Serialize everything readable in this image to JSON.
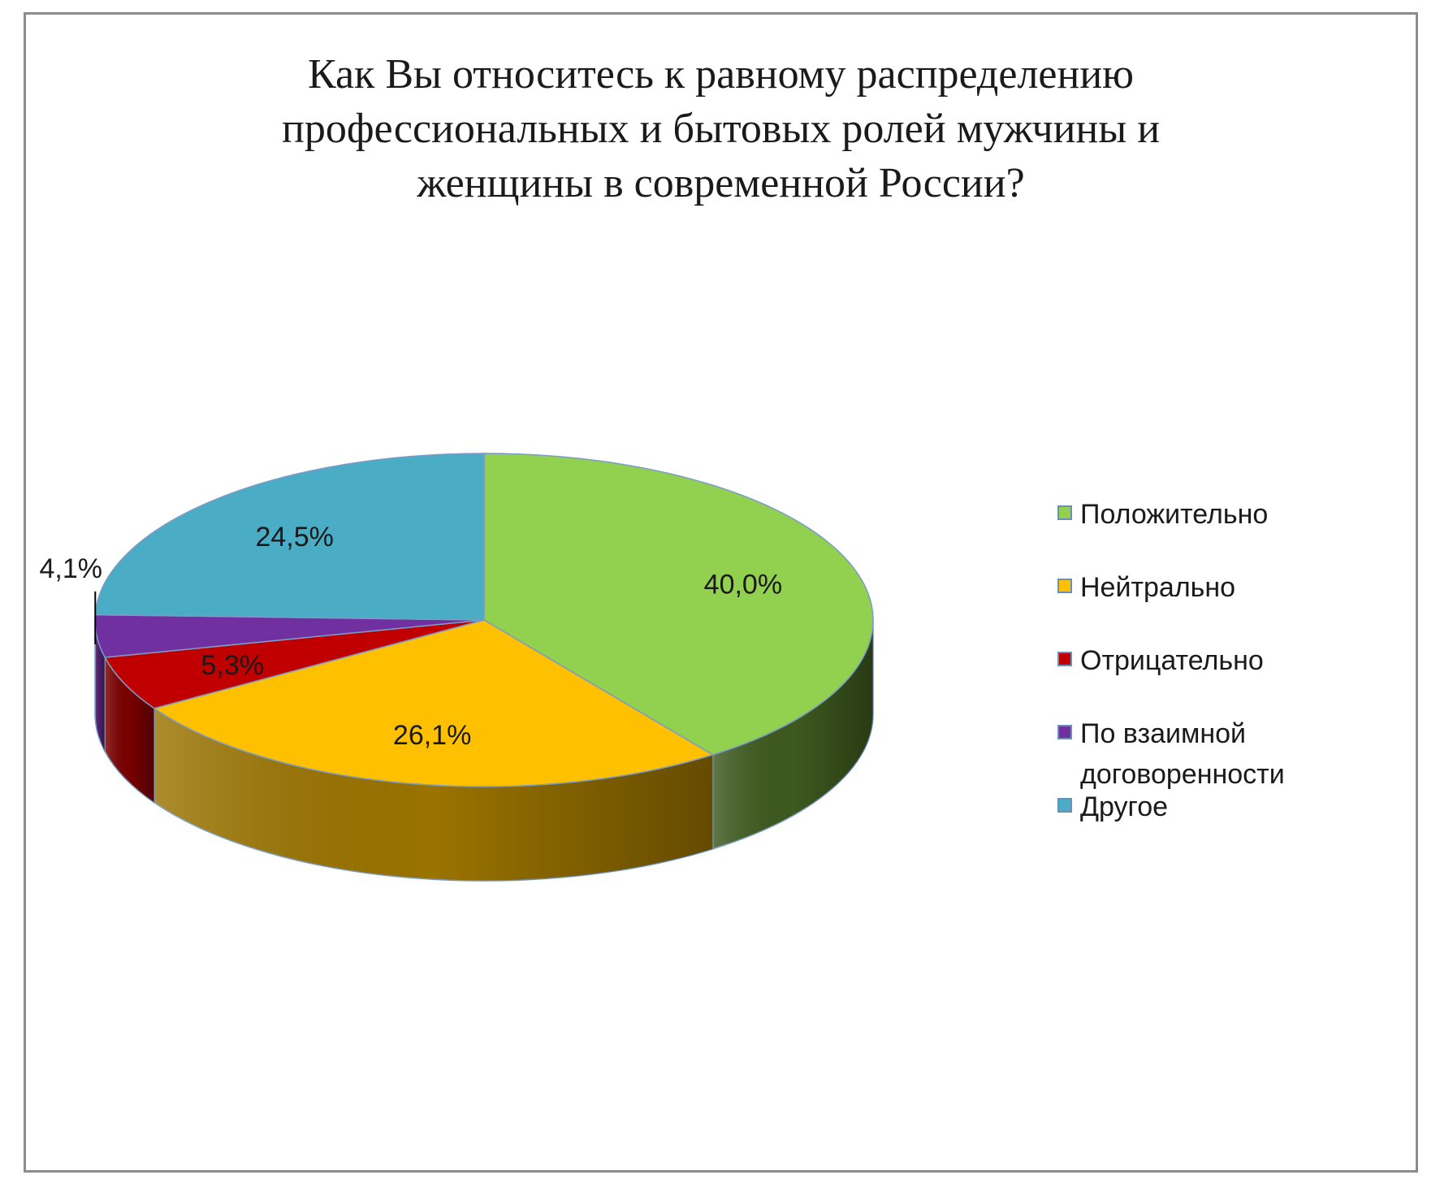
{
  "chart_data": {
    "type": "pie",
    "style": "3d",
    "title_lines": [
      "Как Вы относитесь к равному распределению",
      "профессиональных и бытовых ролей мужчины и",
      "женщины в современной России?"
    ],
    "categories": [
      "Положительно",
      "Нейтрально",
      "Отрицательно",
      "По взаимной договоренности",
      "Другое"
    ],
    "legend_lines": [
      [
        "Положительно"
      ],
      [
        "Нейтрально"
      ],
      [
        "Отрицательно"
      ],
      [
        "По взаимной",
        "договоренности"
      ],
      [
        "Другое"
      ]
    ],
    "values": [
      40.0,
      26.1,
      5.3,
      4.1,
      24.5
    ],
    "value_labels": [
      "40,0%",
      "26,1%",
      "5,3%",
      "4,1%",
      "24,5%"
    ],
    "colors": [
      "#92d050",
      "#ffc000",
      "#c00000",
      "#7030a0",
      "#4bacc6"
    ],
    "side_colors": [
      "#3e5a1e",
      "#9a7300",
      "#7a0000",
      "#4a1f6a",
      "#2d6d80"
    ],
    "legend_position": "right"
  }
}
